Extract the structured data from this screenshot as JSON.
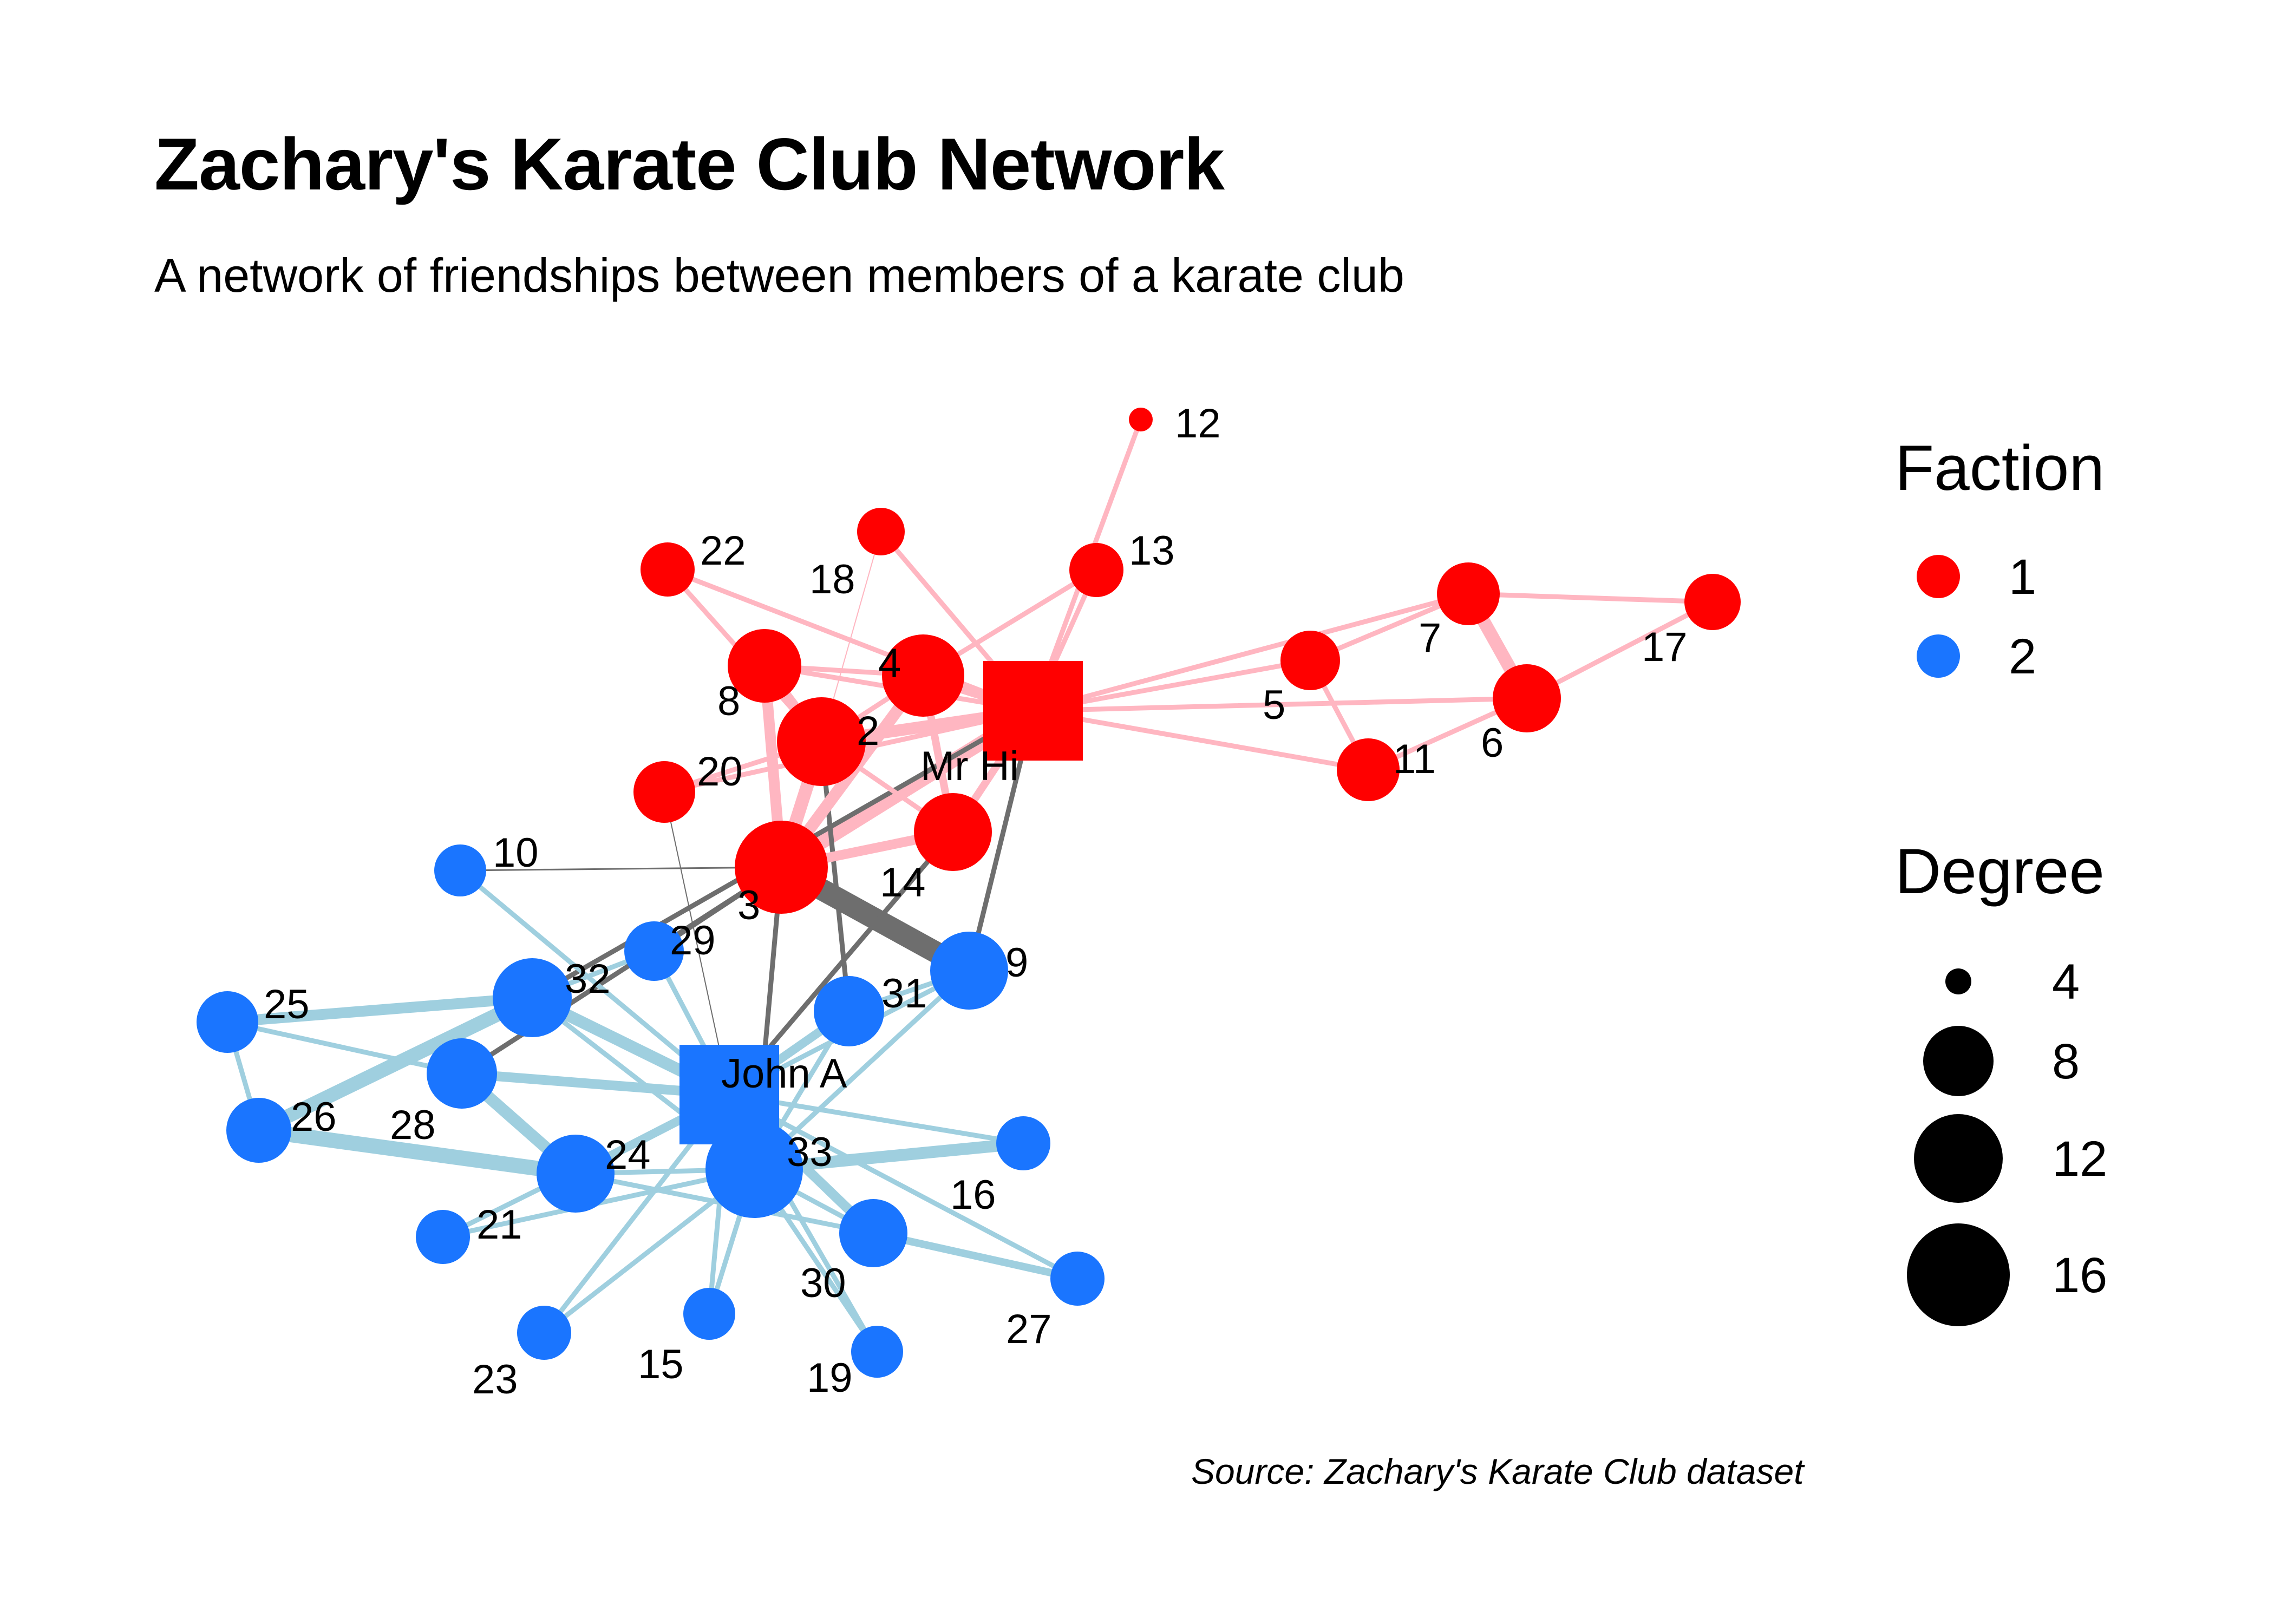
{
  "title": "Zachary's Karate Club Network",
  "subtitle": "A network of friendships between members of a karate club",
  "caption": "Source: Zachary's Karate Club dataset",
  "colors": {
    "faction_1": "#ff0000",
    "faction_2": "#1a75ff",
    "edge_1": "#ffb6c1",
    "edge_2": "#9fcfdf",
    "edge_between": "#6e6e6e"
  },
  "legend": {
    "faction": {
      "title": "Faction",
      "items": [
        {
          "label": "1",
          "color": "#ff0000"
        },
        {
          "label": "2",
          "color": "#1a75ff"
        }
      ]
    },
    "degree": {
      "title": "Degree",
      "items": [
        {
          "label": "4",
          "degree": 4
        },
        {
          "label": "8",
          "degree": 8
        },
        {
          "label": "12",
          "degree": 12
        },
        {
          "label": "16",
          "degree": 16
        }
      ]
    }
  },
  "chart_data": {
    "type": "network",
    "nodes": [
      {
        "id": "Mr Hi",
        "label": "Mr Hi",
        "faction": 1,
        "shape": "square"
      },
      {
        "id": "2",
        "label": "2",
        "faction": 1
      },
      {
        "id": "3",
        "label": "3",
        "faction": 1
      },
      {
        "id": "4",
        "label": "4",
        "faction": 1
      },
      {
        "id": "5",
        "label": "5",
        "faction": 1
      },
      {
        "id": "6",
        "label": "6",
        "faction": 1
      },
      {
        "id": "7",
        "label": "7",
        "faction": 1
      },
      {
        "id": "8",
        "label": "8",
        "faction": 1
      },
      {
        "id": "9",
        "label": "9",
        "faction": 2
      },
      {
        "id": "10",
        "label": "10",
        "faction": 2
      },
      {
        "id": "11",
        "label": "11",
        "faction": 1
      },
      {
        "id": "12",
        "label": "12",
        "faction": 1
      },
      {
        "id": "13",
        "label": "13",
        "faction": 1
      },
      {
        "id": "14",
        "label": "14",
        "faction": 1
      },
      {
        "id": "15",
        "label": "15",
        "faction": 2
      },
      {
        "id": "16",
        "label": "16",
        "faction": 2
      },
      {
        "id": "17",
        "label": "17",
        "faction": 1
      },
      {
        "id": "18",
        "label": "18",
        "faction": 1
      },
      {
        "id": "19",
        "label": "19",
        "faction": 2
      },
      {
        "id": "20",
        "label": "20",
        "faction": 1
      },
      {
        "id": "21",
        "label": "21",
        "faction": 2
      },
      {
        "id": "22",
        "label": "22",
        "faction": 1
      },
      {
        "id": "23",
        "label": "23",
        "faction": 2
      },
      {
        "id": "24",
        "label": "24",
        "faction": 2
      },
      {
        "id": "25",
        "label": "25",
        "faction": 2
      },
      {
        "id": "26",
        "label": "26",
        "faction": 2
      },
      {
        "id": "27",
        "label": "27",
        "faction": 2
      },
      {
        "id": "28",
        "label": "28",
        "faction": 2
      },
      {
        "id": "29",
        "label": "29",
        "faction": 2
      },
      {
        "id": "30",
        "label": "30",
        "faction": 2
      },
      {
        "id": "31",
        "label": "31",
        "faction": 2
      },
      {
        "id": "32",
        "label": "32",
        "faction": 2
      },
      {
        "id": "33",
        "label": "33",
        "faction": 2
      },
      {
        "id": "John A",
        "label": "John A",
        "faction": 2,
        "shape": "square"
      }
    ],
    "edges": [
      [
        "Mr Hi",
        "2"
      ],
      [
        "Mr Hi",
        "3"
      ],
      [
        "Mr Hi",
        "4"
      ],
      [
        "Mr Hi",
        "5"
      ],
      [
        "Mr Hi",
        "6"
      ],
      [
        "Mr Hi",
        "7"
      ],
      [
        "Mr Hi",
        "8"
      ],
      [
        "Mr Hi",
        "9"
      ],
      [
        "Mr Hi",
        "11"
      ],
      [
        "Mr Hi",
        "12"
      ],
      [
        "Mr Hi",
        "13"
      ],
      [
        "Mr Hi",
        "14"
      ],
      [
        "Mr Hi",
        "18"
      ],
      [
        "Mr Hi",
        "20"
      ],
      [
        "Mr Hi",
        "22"
      ],
      [
        "Mr Hi",
        "32"
      ],
      [
        "2",
        "3"
      ],
      [
        "2",
        "4"
      ],
      [
        "2",
        "8"
      ],
      [
        "2",
        "14"
      ],
      [
        "2",
        "18"
      ],
      [
        "2",
        "20"
      ],
      [
        "2",
        "22"
      ],
      [
        "2",
        "31"
      ],
      [
        "3",
        "4"
      ],
      [
        "3",
        "8"
      ],
      [
        "3",
        "9"
      ],
      [
        "3",
        "10"
      ],
      [
        "3",
        "14"
      ],
      [
        "3",
        "28"
      ],
      [
        "3",
        "29"
      ],
      [
        "3",
        "33"
      ],
      [
        "4",
        "8"
      ],
      [
        "4",
        "13"
      ],
      [
        "4",
        "14"
      ],
      [
        "5",
        "7"
      ],
      [
        "5",
        "11"
      ],
      [
        "6",
        "7"
      ],
      [
        "6",
        "11"
      ],
      [
        "6",
        "17"
      ],
      [
        "7",
        "17"
      ],
      [
        "9",
        "31"
      ],
      [
        "9",
        "33"
      ],
      [
        "9",
        "John A"
      ],
      [
        "10",
        "John A"
      ],
      [
        "14",
        "John A"
      ],
      [
        "15",
        "33"
      ],
      [
        "15",
        "John A"
      ],
      [
        "16",
        "33"
      ],
      [
        "16",
        "John A"
      ],
      [
        "19",
        "33"
      ],
      [
        "19",
        "John A"
      ],
      [
        "20",
        "John A"
      ],
      [
        "21",
        "33"
      ],
      [
        "21",
        "John A"
      ],
      [
        "23",
        "33"
      ],
      [
        "23",
        "John A"
      ],
      [
        "24",
        "26"
      ],
      [
        "24",
        "28"
      ],
      [
        "24",
        "30"
      ],
      [
        "24",
        "33"
      ],
      [
        "24",
        "John A"
      ],
      [
        "25",
        "26"
      ],
      [
        "25",
        "28"
      ],
      [
        "25",
        "32"
      ],
      [
        "26",
        "32"
      ],
      [
        "27",
        "30"
      ],
      [
        "27",
        "John A"
      ],
      [
        "28",
        "John A"
      ],
      [
        "29",
        "32"
      ],
      [
        "29",
        "John A"
      ],
      [
        "30",
        "33"
      ],
      [
        "30",
        "John A"
      ],
      [
        "31",
        "33"
      ],
      [
        "31",
        "John A"
      ],
      [
        "32",
        "33"
      ],
      [
        "32",
        "John A"
      ],
      [
        "33",
        "John A"
      ]
    ]
  }
}
